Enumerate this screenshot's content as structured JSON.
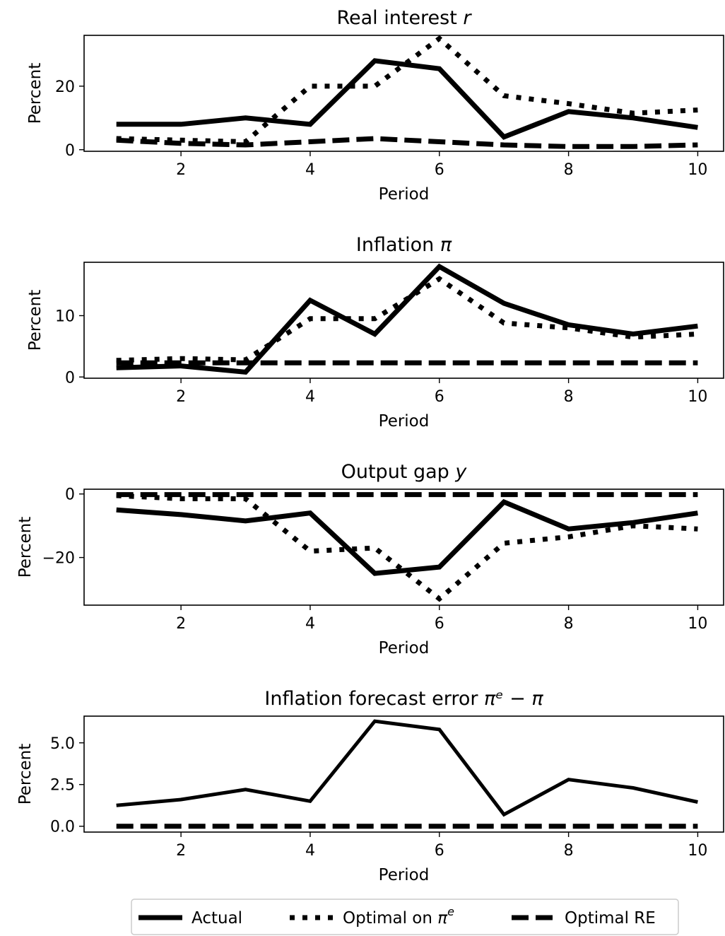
{
  "chart_data": [
    {
      "type": "line",
      "title": "Real interest r",
      "title_plain": "Real interest ",
      "title_math": "r",
      "xlabel": "Period",
      "ylabel": "Percent",
      "x": [
        1,
        2,
        3,
        4,
        5,
        6,
        7,
        8,
        9,
        10
      ],
      "xlim": [
        0.5,
        10.4
      ],
      "ylim": [
        -0.5,
        36
      ],
      "xticks": [
        2,
        4,
        6,
        8,
        10
      ],
      "yticks": [
        0,
        20
      ],
      "series": [
        {
          "name": "Actual",
          "values": [
            8,
            8,
            10,
            8,
            28,
            25.5,
            4,
            12,
            10,
            7
          ]
        },
        {
          "name": "Optimal on πᵉ",
          "values": [
            3.5,
            3,
            2.5,
            20,
            20,
            35,
            17,
            14.5,
            11.5,
            12.5
          ]
        },
        {
          "name": "Optimal RE",
          "values": [
            3,
            2,
            1.5,
            2.5,
            3.5,
            2.5,
            1.5,
            1,
            1,
            1.5
          ]
        }
      ]
    },
    {
      "type": "line",
      "title": "Inflation π",
      "title_plain": "Inflation ",
      "title_math": "π",
      "xlabel": "Period",
      "ylabel": "Percent",
      "x": [
        1,
        2,
        3,
        4,
        5,
        6,
        7,
        8,
        9,
        10
      ],
      "xlim": [
        0.5,
        10.4
      ],
      "ylim": [
        -0.2,
        18.7
      ],
      "xticks": [
        2,
        4,
        6,
        8,
        10
      ],
      "yticks": [
        0,
        10
      ],
      "series": [
        {
          "name": "Actual",
          "values": [
            1.5,
            1.8,
            0.8,
            12.5,
            7,
            18,
            12,
            8.5,
            7,
            8.3
          ]
        },
        {
          "name": "Optimal on πᵉ",
          "values": [
            2.7,
            3,
            2.8,
            9.5,
            9.5,
            16,
            8.8,
            8,
            6.5,
            7
          ]
        },
        {
          "name": "Optimal RE",
          "values": [
            2.3,
            2.3,
            2.3,
            2.3,
            2.3,
            2.3,
            2.3,
            2.3,
            2.3,
            2.3
          ]
        }
      ]
    },
    {
      "type": "line",
      "title": "Output gap y",
      "title_plain": "Output gap ",
      "title_math": "y",
      "xlabel": "Period",
      "ylabel": "Percent",
      "x": [
        1,
        2,
        3,
        4,
        5,
        6,
        7,
        8,
        9,
        10
      ],
      "xlim": [
        0.5,
        10.4
      ],
      "ylim": [
        -35,
        1.5
      ],
      "xticks": [
        2,
        4,
        6,
        8,
        10
      ],
      "yticks": [
        0,
        -20
      ],
      "ytick_labels": [
        "0",
        "−20"
      ],
      "series": [
        {
          "name": "Actual",
          "values": [
            -5,
            -6.5,
            -8.5,
            -6,
            -25,
            -23,
            -2.5,
            -11,
            -9,
            -6
          ]
        },
        {
          "name": "Optimal on πᵉ",
          "values": [
            -0.5,
            -1.5,
            -1.5,
            -18,
            -17,
            -33,
            -15.5,
            -13.5,
            -10,
            -11
          ]
        },
        {
          "name": "Optimal RE",
          "values": [
            -0.2,
            -0.2,
            -0.2,
            -0.2,
            -0.2,
            -0.2,
            -0.2,
            -0.2,
            -0.2,
            -0.2
          ]
        }
      ]
    },
    {
      "type": "line",
      "title": "Inflation forecast error πᵉ − π",
      "title_plain": "Inflation forecast error ",
      "title_math": "πᵉ − π",
      "xlabel": "Period",
      "ylabel": "Percent",
      "x": [
        1,
        2,
        3,
        4,
        5,
        6,
        7,
        8,
        9,
        10
      ],
      "xlim": [
        0.5,
        10.4
      ],
      "ylim": [
        -0.35,
        6.6
      ],
      "xticks": [
        2,
        4,
        6,
        8,
        10
      ],
      "yticks": [
        0,
        2.5,
        5
      ],
      "ytick_labels": [
        "0.0",
        "2.5",
        "5.0"
      ],
      "series": [
        {
          "name": "Actual",
          "values": [
            1.25,
            1.6,
            2.2,
            1.5,
            6.3,
            5.8,
            0.7,
            2.8,
            2.3,
            1.45
          ]
        },
        {
          "name": "Optimal RE",
          "values": [
            0,
            0,
            0,
            0,
            0,
            0,
            0,
            0,
            0,
            0
          ]
        }
      ]
    }
  ],
  "legend": {
    "placement": "bottom-center",
    "entries": [
      {
        "label": "Actual",
        "style": "solid"
      },
      {
        "label_plain": "Optimal on ",
        "label_math": "π",
        "label_sup": "e",
        "style": "dotted"
      },
      {
        "label": "Optimal RE",
        "style": "dashed"
      }
    ]
  },
  "line_color": "#000000"
}
